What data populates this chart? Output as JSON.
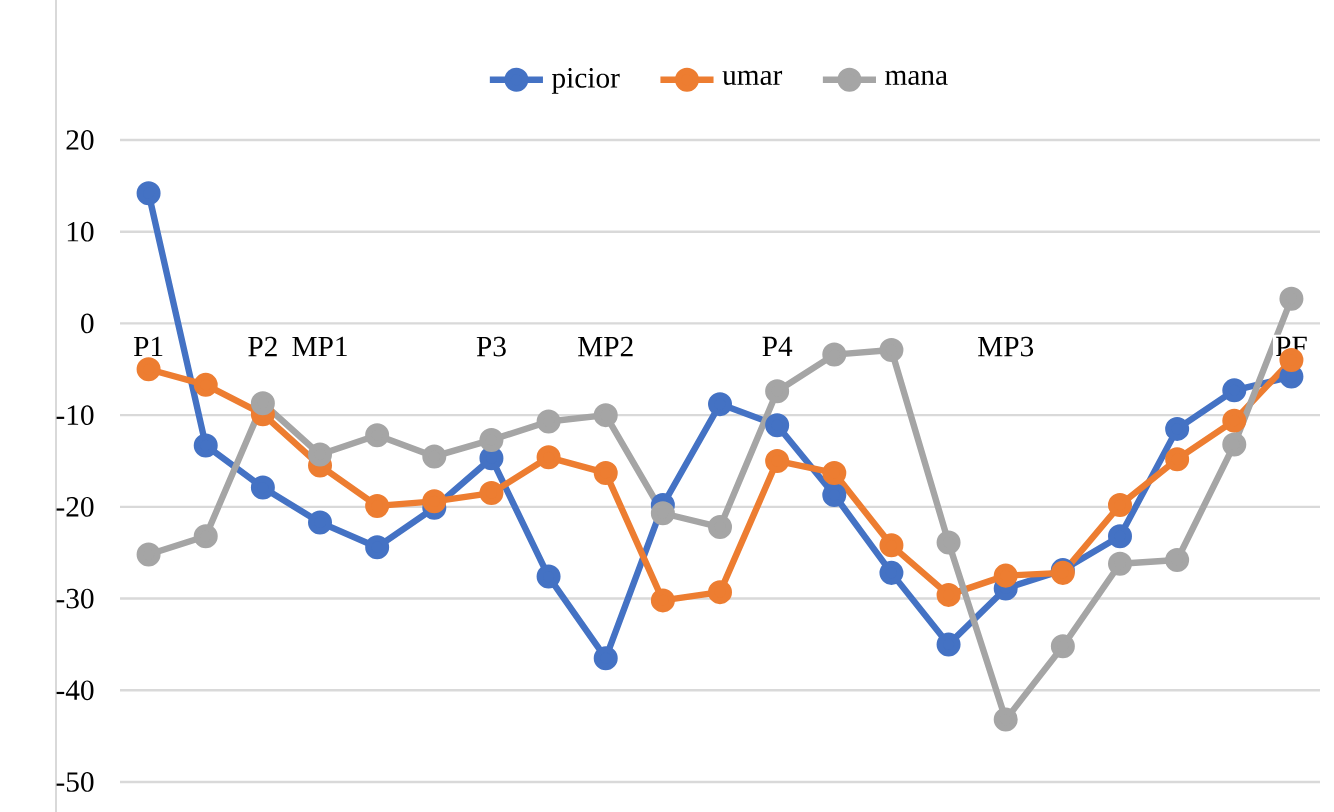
{
  "chart_data": {
    "type": "line",
    "categories": [
      "P1",
      null,
      "P2",
      "MP1",
      null,
      null,
      "P3",
      null,
      "MP2",
      null,
      null,
      "P4",
      null,
      null,
      null,
      "MP3",
      null,
      null,
      null,
      null,
      "PF"
    ],
    "series": [
      {
        "name": "picior",
        "color": "#4472c4",
        "values": [
          14.2,
          -13.3,
          -17.9,
          -21.7,
          -24.4,
          -20.1,
          -14.7,
          -27.6,
          -36.5,
          -19.8,
          -8.8,
          -11.1,
          -18.7,
          -27.2,
          -35.0,
          -28.9,
          -26.9,
          -23.2,
          -11.5,
          -7.3,
          -5.8
        ]
      },
      {
        "name": "umar",
        "color": "#ed7d31",
        "values": [
          -5.0,
          -6.7,
          -9.9,
          -15.5,
          -19.9,
          -19.4,
          -18.5,
          -14.6,
          -16.3,
          -30.2,
          -29.3,
          -15.0,
          -16.3,
          -24.2,
          -29.6,
          -27.5,
          -27.2,
          -19.8,
          -14.8,
          -10.6,
          -4.0
        ]
      },
      {
        "name": "mana",
        "color": "#a5a5a5",
        "values": [
          -25.2,
          -23.2,
          -8.7,
          -14.3,
          -12.2,
          -14.5,
          -12.7,
          -10.7,
          -10.0,
          -20.7,
          -22.2,
          -7.4,
          -3.4,
          -2.9,
          -23.9,
          -43.2,
          -35.2,
          -26.2,
          -25.8,
          -13.2,
          2.7
        ]
      }
    ],
    "ylim": [
      -50,
      20
    ],
    "yticks": [
      -50,
      -40,
      -30,
      -20,
      -10,
      0,
      10,
      20
    ],
    "grid": "y",
    "legend": "top",
    "marker": "circle",
    "line_style": "solid"
  }
}
